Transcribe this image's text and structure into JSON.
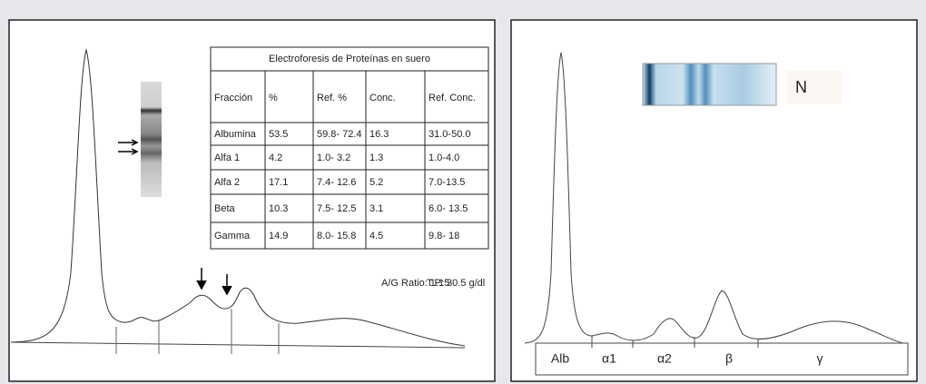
{
  "left_panel": {
    "table": {
      "title": "Electroforesis de Proteínas en suero",
      "header": [
        "Fracción",
        "%",
        "Ref. %",
        "Conc.",
        "Ref. Conc."
      ],
      "rows": [
        [
          "Albumina",
          "53.5",
          "59.8- 72.4",
          "16.3",
          "31.0-50.0"
        ],
        [
          "Alfa 1",
          "4.2",
          "1.0- 3.2",
          "1.3",
          "1.0-4.0"
        ],
        [
          "Alfa 2",
          "17.1",
          "7.4- 12.6",
          "5.2",
          "7.0-13.5"
        ],
        [
          "Beta",
          "10.3",
          "7.5- 12.5",
          "3.1",
          "6.0- 13.5"
        ],
        [
          "Gamma",
          "14.9",
          "8.0- 15.8",
          "4.5",
          "9.8- 18"
        ]
      ]
    },
    "ag_ratio": "A/G Ratio: 1.15",
    "tp": "T.P: 30.5 g/dl"
  },
  "right_panel": {
    "label": "N",
    "fractions": [
      "Alb",
      "α1",
      "α2",
      "β",
      "γ"
    ]
  }
}
